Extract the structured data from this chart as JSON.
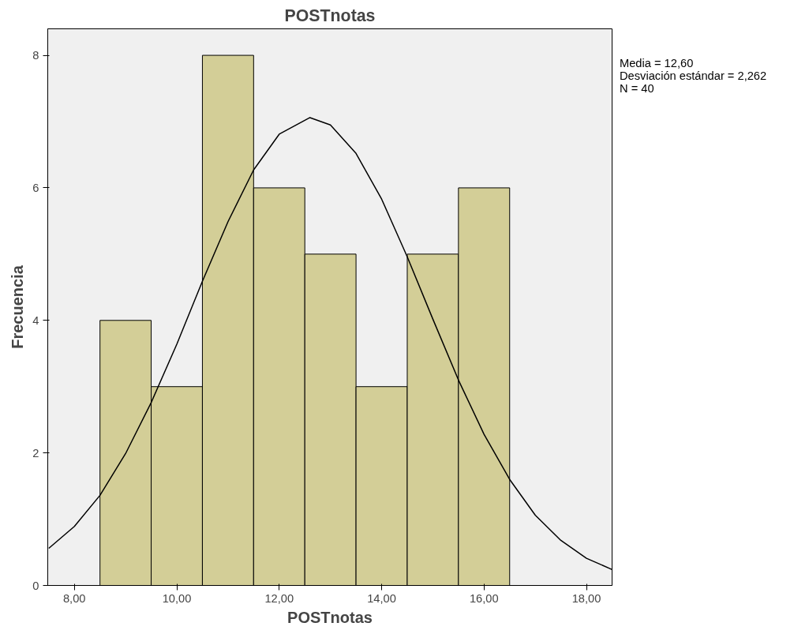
{
  "chart_data": {
    "type": "histogram",
    "title": "POSTnotas",
    "xlabel": "POSTnotas",
    "ylabel": "Frecuencia",
    "bins": [
      8.5,
      9.5,
      10.5,
      11.5,
      12.5,
      13.5,
      14.5,
      15.5,
      16.5
    ],
    "values": [
      4,
      3,
      8,
      6,
      5,
      3,
      5,
      6
    ],
    "color": "#d3ce97",
    "series": [
      {
        "type": "line",
        "color": "#000000",
        "x": [
          7.5,
          8,
          8.5,
          9,
          9.5,
          10,
          10.5,
          11,
          11.5,
          12,
          12.6,
          13,
          13.5,
          14,
          14.5,
          15,
          15.5,
          16,
          16.5,
          17,
          17.5,
          18,
          18.5
        ],
        "values": [
          0.56,
          0.89,
          1.36,
          1.99,
          2.76,
          3.64,
          4.59,
          5.49,
          6.27,
          6.81,
          7.06,
          6.95,
          6.52,
          5.83,
          4.96,
          4.02,
          3.1,
          2.28,
          1.6,
          1.06,
          0.68,
          0.41,
          0.24
        ]
      }
    ],
    "xlim": [
      7.48,
      18.5
    ],
    "ylim": [
      0,
      8.4
    ],
    "xticks": [
      {
        "value": 8,
        "label": "8,00"
      },
      {
        "value": 10,
        "label": "10,00"
      },
      {
        "value": 12,
        "label": "12,00"
      },
      {
        "value": 14,
        "label": "14,00"
      },
      {
        "value": 16,
        "label": "16,00"
      },
      {
        "value": 18,
        "label": "18,00"
      }
    ],
    "yticks": [
      0,
      2,
      4,
      6,
      8
    ],
    "grid": false,
    "annotations": [
      "Media = 12,60",
      "Desviación estándar = 2,262",
      "N = 40"
    ]
  }
}
